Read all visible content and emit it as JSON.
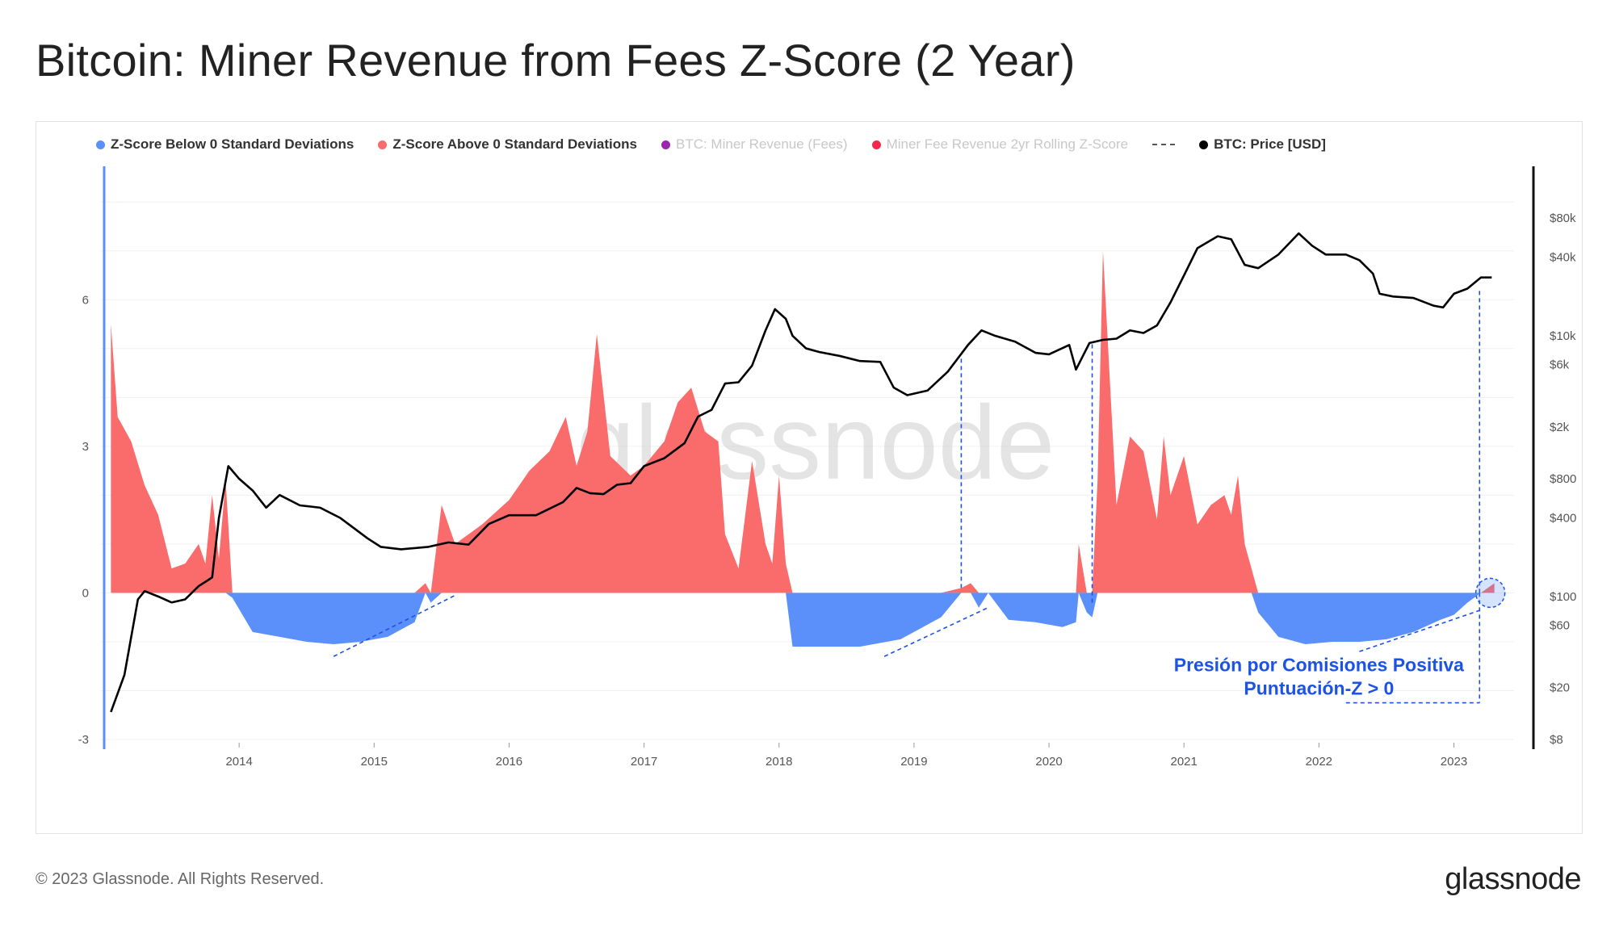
{
  "title": "Bitcoin: Miner Revenue from Fees Z-Score (2 Year)",
  "legend": [
    {
      "label": "Z-Score Below 0 Standard Deviations",
      "color": "#5b8ff9",
      "muted": false
    },
    {
      "label": "Z-Score Above 0 Standard Deviations",
      "color": "#fa6b6b",
      "muted": false
    },
    {
      "label": "BTC: Miner Revenue (Fees)",
      "color": "#9b27af",
      "muted": true
    },
    {
      "label": "Miner Fee Revenue 2yr Rolling Z-Score",
      "color": "#f1284b",
      "muted": true
    },
    {
      "label": "BTC: Price [USD]",
      "color": "#000000",
      "muted": false
    }
  ],
  "footer": "© 2023 Glassnode. All Rights Reserved.",
  "brand": "glassnode",
  "chart_data": {
    "type": "area",
    "watermark": "glassnode",
    "x_ticks": [
      "2014",
      "2015",
      "2016",
      "2017",
      "2018",
      "2019",
      "2020",
      "2021",
      "2022",
      "2023"
    ],
    "x_range": [
      2013.0,
      2023.35
    ],
    "left_axis": {
      "ticks": [
        "6",
        "3",
        "0",
        "-3"
      ],
      "range": [
        -3,
        8.4
      ]
    },
    "right_axis": {
      "ticks": [
        "$80k",
        "$40k",
        "$10k",
        "$6k",
        "$2k",
        "$800",
        "$400",
        "$100",
        "$60",
        "$20",
        "$8"
      ],
      "scale": "log"
    },
    "zscore_series": {
      "name": "Miner Fee Revenue 2yr Rolling Z-Score",
      "positive_color": "#fa6b6b",
      "negative_color": "#5b8ff9",
      "x": [
        2013.05,
        2013.1,
        2013.2,
        2013.3,
        2013.4,
        2013.5,
        2013.6,
        2013.7,
        2013.75,
        2013.8,
        2013.85,
        2013.9,
        2013.95,
        2014.1,
        2014.3,
        2014.5,
        2014.7,
        2014.9,
        2015.1,
        2015.3,
        2015.38,
        2015.42,
        2015.5,
        2015.6,
        2015.8,
        2016.0,
        2016.15,
        2016.3,
        2016.42,
        2016.5,
        2016.58,
        2016.65,
        2016.75,
        2016.9,
        2017.0,
        2017.15,
        2017.25,
        2017.35,
        2017.45,
        2017.55,
        2017.6,
        2017.7,
        2017.8,
        2017.9,
        2017.95,
        2018.0,
        2018.05,
        2018.1,
        2018.3,
        2018.6,
        2018.9,
        2019.2,
        2019.35,
        2019.42,
        2019.48,
        2019.55,
        2019.7,
        2019.9,
        2020.1,
        2020.2,
        2020.22,
        2020.28,
        2020.32,
        2020.36,
        2020.4,
        2020.5,
        2020.6,
        2020.7,
        2020.8,
        2020.85,
        2020.9,
        2021.0,
        2021.1,
        2021.2,
        2021.3,
        2021.35,
        2021.4,
        2021.45,
        2021.5,
        2021.55,
        2021.7,
        2021.9,
        2022.1,
        2022.3,
        2022.5,
        2022.7,
        2022.9,
        2023.0,
        2023.1,
        2023.2,
        2023.3
      ],
      "values": [
        5.5,
        3.6,
        3.1,
        2.2,
        1.6,
        0.5,
        0.6,
        1.0,
        0.6,
        2.0,
        0.7,
        2.3,
        -0.1,
        -0.8,
        -0.9,
        -1.0,
        -1.05,
        -1.0,
        -0.9,
        -0.6,
        0.2,
        -0.2,
        1.8,
        1.0,
        1.4,
        1.9,
        2.5,
        2.9,
        3.6,
        2.6,
        3.3,
        5.3,
        2.8,
        2.4,
        2.6,
        3.1,
        3.9,
        4.2,
        3.3,
        3.1,
        1.2,
        0.5,
        2.7,
        1.0,
        0.6,
        2.4,
        0.6,
        -1.1,
        -1.1,
        -1.1,
        -0.95,
        -0.5,
        0.1,
        0.2,
        -0.3,
        0.0,
        -0.55,
        -0.6,
        -0.7,
        -0.6,
        1.0,
        -0.4,
        -0.5,
        2.3,
        7.0,
        1.8,
        3.2,
        2.9,
        1.5,
        3.2,
        2.0,
        2.8,
        1.4,
        1.8,
        2.0,
        1.6,
        2.4,
        1.0,
        0.5,
        -0.4,
        -0.9,
        -1.05,
        -1.0,
        -1.0,
        -0.95,
        -0.8,
        -0.55,
        -0.45,
        -0.2,
        0.0,
        0.2
      ]
    },
    "price_series": {
      "name": "BTC: Price [USD]",
      "color": "#000000",
      "x": [
        2013.05,
        2013.15,
        2013.25,
        2013.3,
        2013.4,
        2013.5,
        2013.6,
        2013.7,
        2013.8,
        2013.85,
        2013.92,
        2014.0,
        2014.1,
        2014.2,
        2014.3,
        2014.45,
        2014.6,
        2014.75,
        2014.95,
        2015.05,
        2015.2,
        2015.4,
        2015.55,
        2015.7,
        2015.85,
        2016.0,
        2016.2,
        2016.4,
        2016.5,
        2016.6,
        2016.7,
        2016.8,
        2016.9,
        2017.0,
        2017.15,
        2017.3,
        2017.4,
        2017.5,
        2017.6,
        2017.7,
        2017.8,
        2017.9,
        2017.97,
        2018.05,
        2018.1,
        2018.2,
        2018.3,
        2018.45,
        2018.6,
        2018.75,
        2018.85,
        2018.95,
        2019.1,
        2019.25,
        2019.4,
        2019.5,
        2019.6,
        2019.75,
        2019.9,
        2020.0,
        2020.15,
        2020.2,
        2020.3,
        2020.4,
        2020.5,
        2020.6,
        2020.7,
        2020.8,
        2020.9,
        2021.0,
        2021.1,
        2021.25,
        2021.35,
        2021.45,
        2021.55,
        2021.7,
        2021.85,
        2021.95,
        2022.05,
        2022.2,
        2022.3,
        2022.4,
        2022.45,
        2022.55,
        2022.7,
        2022.85,
        2022.92,
        2023.0,
        2023.1,
        2023.2,
        2023.28
      ],
      "values": [
        13,
        25,
        95,
        110,
        100,
        90,
        95,
        120,
        140,
        400,
        1000,
        800,
        650,
        480,
        600,
        500,
        480,
        400,
        280,
        240,
        230,
        240,
        260,
        250,
        360,
        420,
        420,
        530,
        680,
        620,
        610,
        720,
        740,
        1000,
        1150,
        1500,
        2400,
        2700,
        4300,
        4400,
        5900,
        11000,
        16000,
        13500,
        10000,
        8000,
        7500,
        7000,
        6400,
        6300,
        4000,
        3500,
        3800,
        5300,
        8500,
        11000,
        10000,
        9000,
        7400,
        7200,
        8500,
        5500,
        8800,
        9300,
        9500,
        11000,
        10500,
        12000,
        18000,
        29000,
        47000,
        58000,
        55000,
        35000,
        33000,
        42000,
        61000,
        49000,
        42000,
        42000,
        38000,
        30000,
        21000,
        20000,
        19500,
        17000,
        16500,
        21000,
        23000,
        28000,
        28000
      ]
    },
    "annotation": {
      "line1": "Presión por Comisiones Positiva",
      "line2": "Puntuación-Z > 0"
    }
  }
}
